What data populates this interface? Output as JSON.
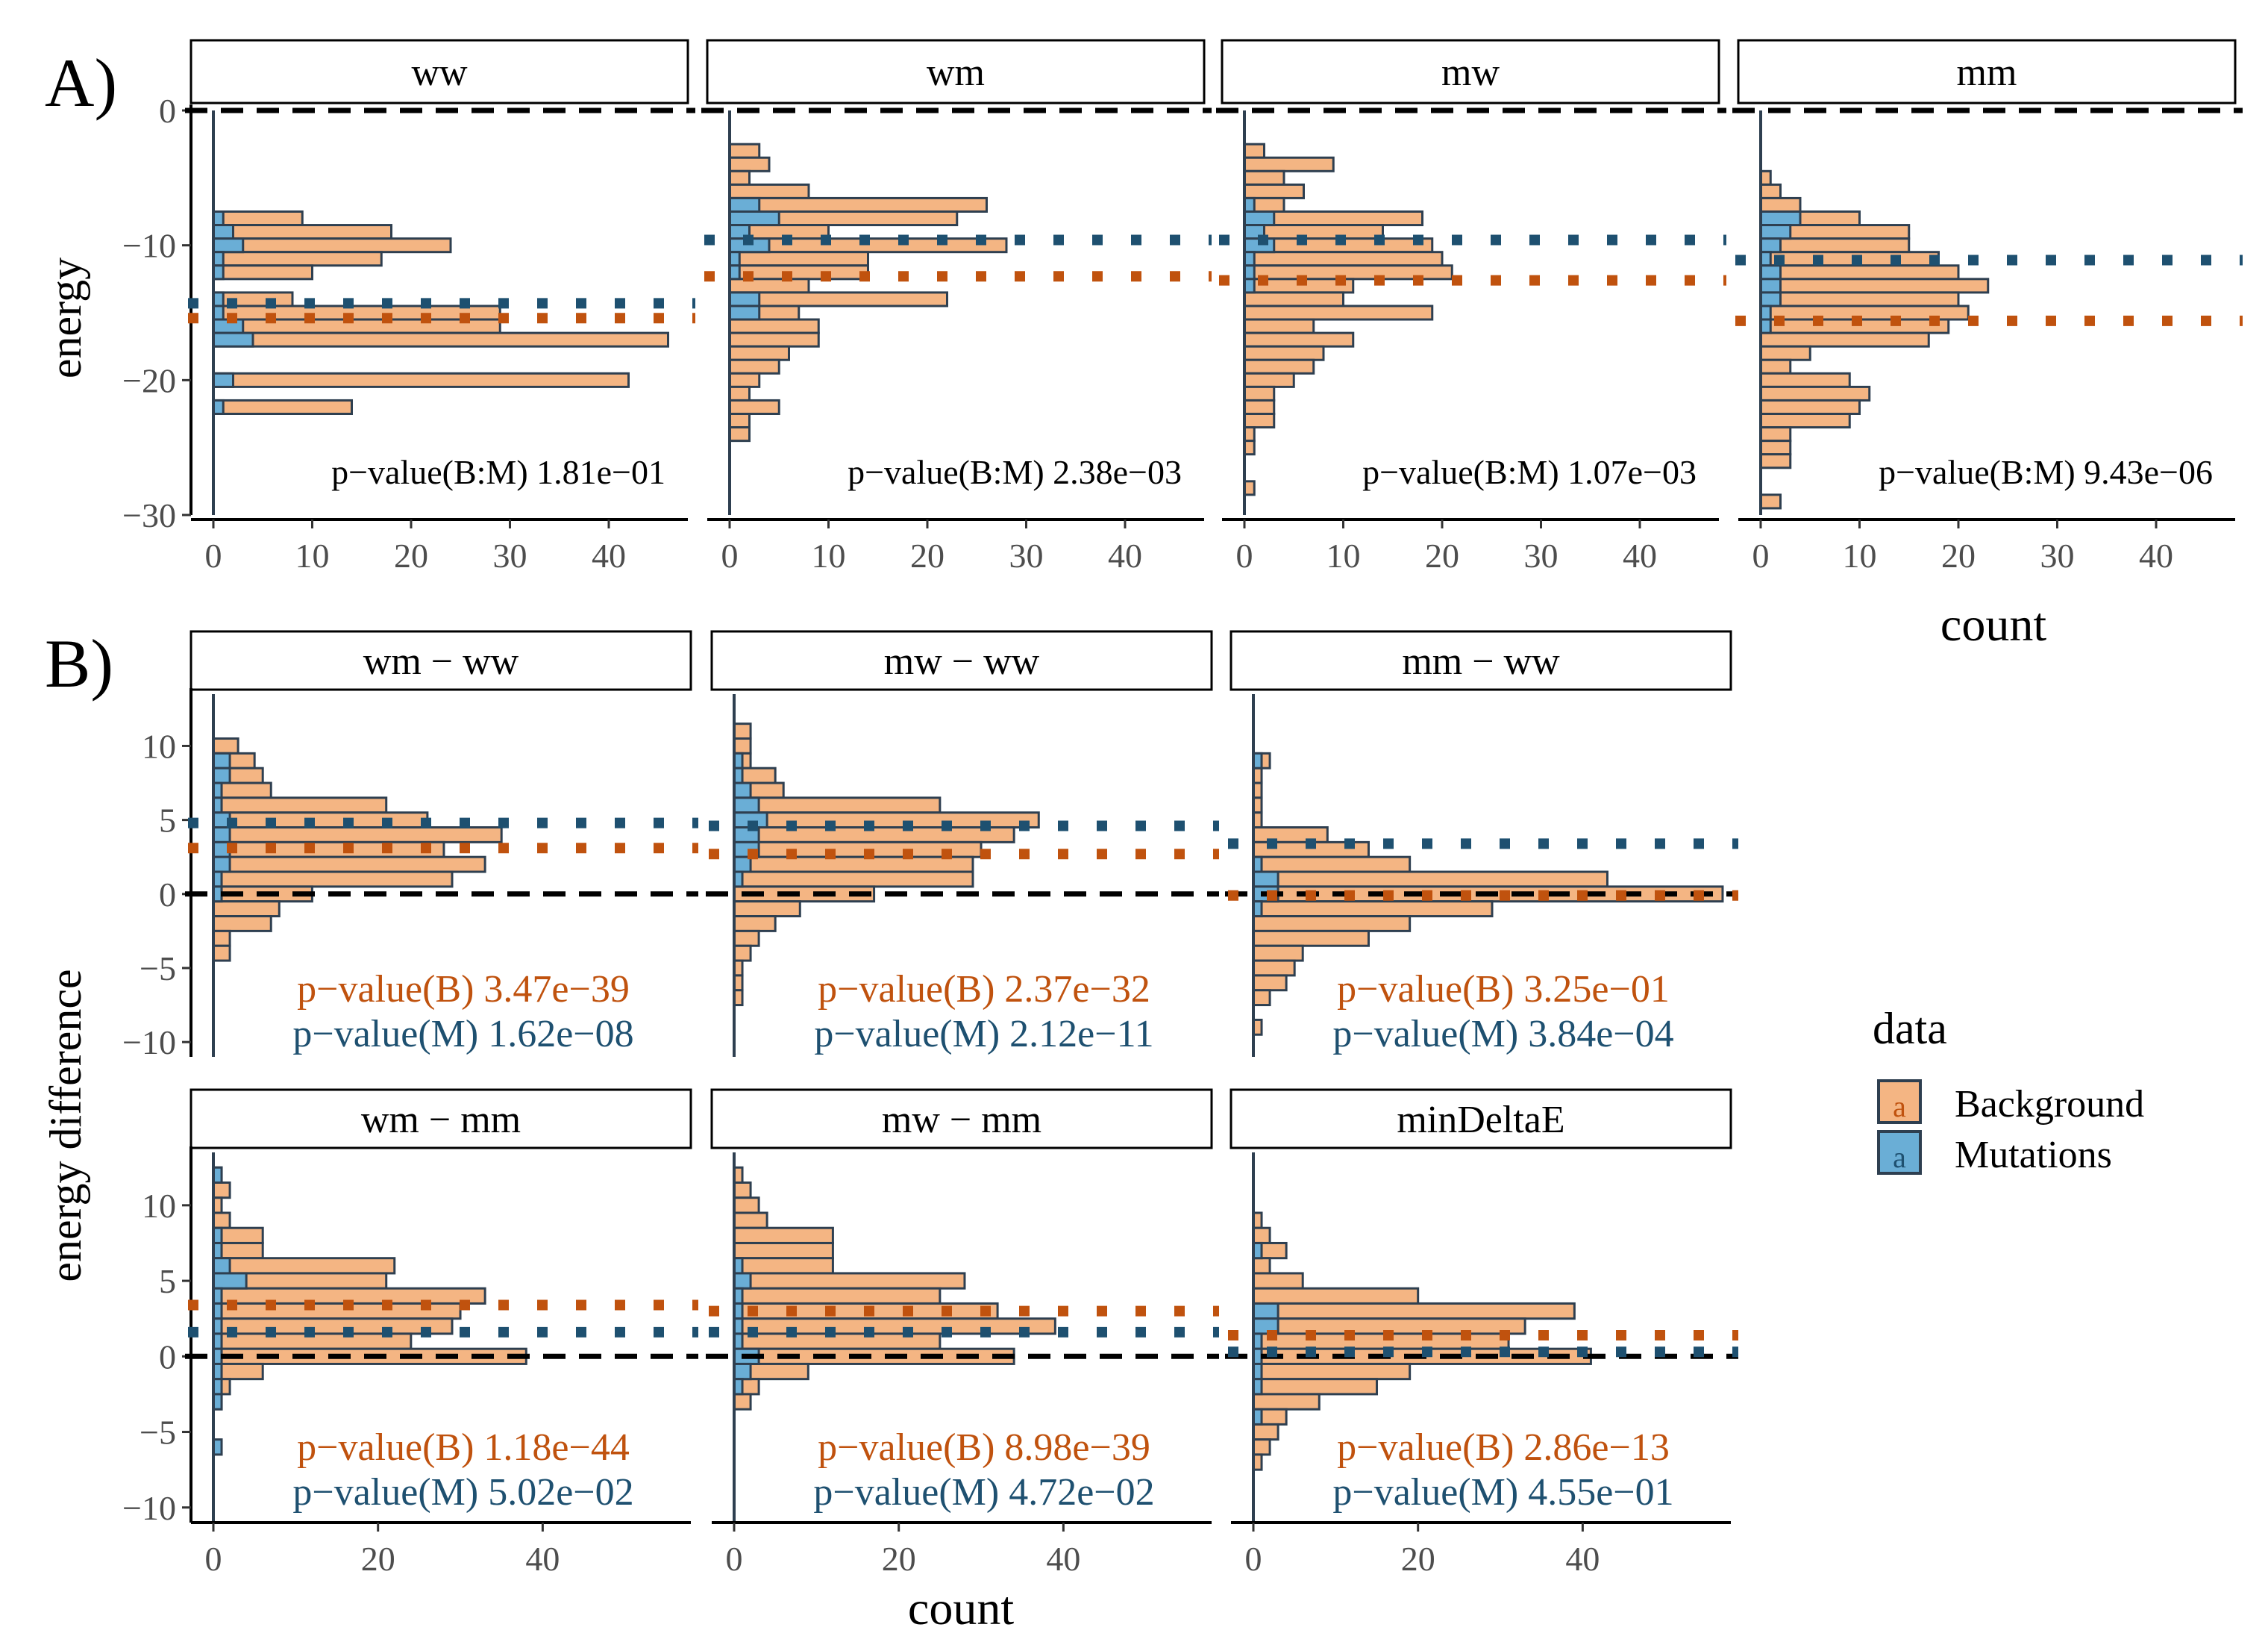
{
  "figure": {
    "panel_labels": {
      "A": "A)",
      "B": "B)"
    },
    "colors": {
      "background_fill": "#F4B583",
      "mutation_fill": "#6AAED6",
      "bar_stroke": "#2E3F50",
      "background_line": "#C0520E",
      "mutation_line": "#1E5070",
      "zero_line": "#000000"
    },
    "legend": {
      "title": "data",
      "items": [
        {
          "label": "Background",
          "glyph": "a"
        },
        {
          "label": "Mutations",
          "glyph": "a"
        }
      ]
    }
  },
  "chart_data": [
    {
      "section": "A",
      "type": "bar",
      "orientation": "horizontal-histogram",
      "ylabel": "energy",
      "xlabel": "count",
      "ylim": [
        -30,
        0
      ],
      "yticks": [
        0,
        -10,
        -20,
        -30
      ],
      "xlim": [
        0,
        48
      ],
      "xticks": [
        0,
        10,
        20,
        30,
        40
      ],
      "bin_width": 1,
      "panels": [
        {
          "name": "ww",
          "title": "ww",
          "annotation": {
            "pvalue_bm": "p−value(B:M) 1.81e−01"
          },
          "hlines": {
            "zero": 0,
            "background_mean": -15.4,
            "mutation_mean": -14.3
          },
          "series": [
            {
              "name": "Background",
              "bins": [
                -8,
                -9,
                -10,
                -11,
                -12,
                -14,
                -15,
                -16,
                -17,
                -20,
                -22
              ],
              "values": [
                9,
                18,
                24,
                17,
                10,
                8,
                29,
                29,
                46,
                42,
                14
              ]
            },
            {
              "name": "Mutations",
              "bins": [
                -8,
                -9,
                -10,
                -11,
                -12,
                -14,
                -15,
                -16,
                -17,
                -20,
                -22
              ],
              "values": [
                1,
                2,
                3,
                1,
                1,
                1,
                1,
                3,
                4,
                2,
                1
              ]
            }
          ]
        },
        {
          "name": "wm",
          "title": "wm",
          "annotation": {
            "pvalue_bm": "p−value(B:M) 2.38e−03"
          },
          "hlines": {
            "zero": 0,
            "background_mean": -12.3,
            "mutation_mean": -9.6
          },
          "series": [
            {
              "name": "Background",
              "bins": [
                -3,
                -4,
                -5,
                -6,
                -7,
                -8,
                -9,
                -10,
                -11,
                -12,
                -13,
                -14,
                -15,
                -16,
                -17,
                -18,
                -19,
                -20,
                -21,
                -22,
                -23,
                -24
              ],
              "values": [
                3,
                4,
                2,
                8,
                26,
                23,
                10,
                28,
                14,
                14,
                8,
                22,
                7,
                9,
                9,
                6,
                5,
                3,
                2,
                5,
                2,
                2
              ]
            },
            {
              "name": "Mutations",
              "bins": [
                -7,
                -8,
                -9,
                -10,
                -11,
                -12,
                -14,
                -15
              ],
              "values": [
                3,
                5,
                2,
                4,
                1,
                1,
                3,
                3
              ]
            }
          ]
        },
        {
          "name": "mw",
          "title": "mw",
          "annotation": {
            "pvalue_bm": "p−value(B:M) 1.07e−03"
          },
          "hlines": {
            "zero": 0,
            "background_mean": -12.6,
            "mutation_mean": -9.6
          },
          "series": [
            {
              "name": "Background",
              "bins": [
                -3,
                -4,
                -5,
                -6,
                -7,
                -8,
                -9,
                -10,
                -11,
                -12,
                -13,
                -14,
                -15,
                -16,
                -17,
                -18,
                -19,
                -20,
                -21,
                -22,
                -23,
                -24,
                -25,
                -28
              ],
              "values": [
                2,
                9,
                4,
                6,
                4,
                18,
                14,
                19,
                20,
                21,
                11,
                10,
                19,
                7,
                11,
                8,
                7,
                5,
                3,
                3,
                3,
                1,
                1,
                1
              ]
            },
            {
              "name": "Mutations",
              "bins": [
                -7,
                -8,
                -9,
                -10,
                -11,
                -12,
                -13
              ],
              "values": [
                1,
                3,
                2,
                3,
                1,
                1,
                1
              ]
            }
          ]
        },
        {
          "name": "mm",
          "title": "mm",
          "annotation": {
            "pvalue_bm": "p−value(B:M) 9.43e−06"
          },
          "hlines": {
            "zero": 0,
            "background_mean": -15.6,
            "mutation_mean": -11.1
          },
          "series": [
            {
              "name": "Background",
              "bins": [
                -5,
                -6,
                -7,
                -8,
                -9,
                -10,
                -11,
                -12,
                -13,
                -14,
                -15,
                -16,
                -17,
                -18,
                -19,
                -20,
                -21,
                -22,
                -23,
                -24,
                -25,
                -26,
                -29
              ],
              "values": [
                1,
                2,
                4,
                10,
                15,
                15,
                18,
                20,
                23,
                20,
                21,
                19,
                17,
                5,
                3,
                9,
                11,
                10,
                9,
                3,
                3,
                3,
                2
              ]
            },
            {
              "name": "Mutations",
              "bins": [
                -8,
                -9,
                -10,
                -11,
                -12,
                -13,
                -14,
                -15,
                -16
              ],
              "values": [
                4,
                3,
                2,
                1,
                2,
                2,
                2,
                1,
                1
              ]
            }
          ]
        }
      ]
    },
    {
      "section": "B",
      "type": "bar",
      "orientation": "horizontal-histogram",
      "ylabel": "energy difference",
      "xlabel": "count",
      "ylim": [
        -11,
        13.5
      ],
      "yticks": [
        10,
        5,
        0,
        -5,
        -10
      ],
      "xlim": [
        0,
        58
      ],
      "xticks": [
        0,
        20,
        40
      ],
      "bin_width": 1,
      "panels": [
        {
          "name": "wm-ww",
          "title": "wm − ww",
          "annotation": {
            "pvalue_b": "p−value(B) 3.47e−39",
            "pvalue_m": "p−value(M) 1.62e−08"
          },
          "hlines": {
            "zero": 0,
            "background_mean": 3.1,
            "mutation_mean": 4.8
          },
          "series": [
            {
              "name": "Background",
              "bins": [
                10,
                9,
                8,
                7,
                6,
                5,
                4,
                3,
                2,
                1,
                0,
                -1,
                -2,
                -3,
                -4
              ],
              "values": [
                3,
                5,
                6,
                7,
                21,
                26,
                35,
                28,
                33,
                29,
                12,
                8,
                7,
                2,
                2
              ]
            },
            {
              "name": "Mutations",
              "bins": [
                9,
                8,
                7,
                6,
                5,
                4,
                3,
                2,
                1,
                0
              ],
              "values": [
                2,
                2,
                1,
                1,
                2,
                2,
                2,
                2,
                1,
                1
              ]
            }
          ]
        },
        {
          "name": "mw-ww",
          "title": "mw − ww",
          "annotation": {
            "pvalue_b": "p−value(B) 2.37e−32",
            "pvalue_m": "p−value(M) 2.12e−11"
          },
          "hlines": {
            "zero": 0,
            "background_mean": 2.7,
            "mutation_mean": 4.6
          },
          "series": [
            {
              "name": "Background",
              "bins": [
                11,
                10,
                9,
                8,
                7,
                6,
                5,
                4,
                3,
                2,
                1,
                0,
                -1,
                -2,
                -3,
                -4,
                -5,
                -6,
                -7
              ],
              "values": [
                2,
                2,
                2,
                5,
                6,
                25,
                37,
                34,
                30,
                29,
                29,
                17,
                8,
                5,
                3,
                2,
                1,
                1,
                1
              ]
            },
            {
              "name": "Mutations",
              "bins": [
                9,
                8,
                7,
                6,
                5,
                4,
                3,
                2,
                1
              ],
              "values": [
                1,
                1,
                2,
                3,
                4,
                3,
                3,
                2,
                1
              ]
            }
          ]
        },
        {
          "name": "mm-ww",
          "title": "mm − ww",
          "annotation": {
            "pvalue_b": "p−value(B) 3.25e−01",
            "pvalue_m": "p−value(M) 3.84e−04"
          },
          "hlines": {
            "zero": 0,
            "background_mean": -0.1,
            "mutation_mean": 3.4
          },
          "series": [
            {
              "name": "Background",
              "bins": [
                9,
                8,
                7,
                6,
                5,
                4,
                3,
                2,
                1,
                0,
                -1,
                -2,
                -3,
                -4,
                -5,
                -6,
                -7,
                -9
              ],
              "values": [
                2,
                1,
                1,
                1,
                1,
                9,
                14,
                19,
                43,
                57,
                29,
                19,
                14,
                6,
                5,
                4,
                2,
                1
              ]
            },
            {
              "name": "Mutations",
              "bins": [
                9,
                2,
                1,
                0,
                -1
              ],
              "values": [
                1,
                1,
                3,
                3,
                1
              ]
            }
          ]
        },
        {
          "name": "wm-mm",
          "title": "wm − mm",
          "annotation": {
            "pvalue_b": "p−value(B) 1.18e−44",
            "pvalue_m": "p−value(M) 5.02e−02"
          },
          "hlines": {
            "zero": 0,
            "background_mean": 3.4,
            "mutation_mean": 1.6
          },
          "series": [
            {
              "name": "Background",
              "bins": [
                12,
                11,
                10,
                9,
                8,
                7,
                6,
                5,
                4,
                3,
                2,
                1,
                0,
                -1,
                -2,
                -3
              ],
              "values": [
                1,
                2,
                1,
                2,
                6,
                6,
                22,
                21,
                33,
                30,
                29,
                24,
                38,
                6,
                2,
                1
              ]
            },
            {
              "name": "Mutations",
              "bins": [
                12,
                8,
                7,
                6,
                5,
                4,
                3,
                2,
                1,
                0,
                -1,
                -2,
                -3,
                -6
              ],
              "values": [
                1,
                1,
                1,
                2,
                4,
                1,
                1,
                1,
                1,
                1,
                1,
                1,
                1,
                1
              ]
            }
          ]
        },
        {
          "name": "mw-mm",
          "title": "mw − mm",
          "annotation": {
            "pvalue_b": "p−value(B) 8.98e−39",
            "pvalue_m": "p−value(M) 4.72e−02"
          },
          "hlines": {
            "zero": 0,
            "background_mean": 3.0,
            "mutation_mean": 1.6
          },
          "series": [
            {
              "name": "Background",
              "bins": [
                12,
                11,
                10,
                9,
                8,
                7,
                6,
                5,
                4,
                3,
                2,
                1,
                0,
                -1,
                -2,
                -3
              ],
              "values": [
                1,
                2,
                3,
                4,
                12,
                12,
                12,
                28,
                25,
                32,
                39,
                25,
                34,
                9,
                3,
                2
              ]
            },
            {
              "name": "Mutations",
              "bins": [
                6,
                5,
                4,
                3,
                2,
                1,
                0,
                -1,
                -2
              ],
              "values": [
                1,
                2,
                1,
                1,
                1,
                1,
                3,
                2,
                1
              ]
            }
          ]
        },
        {
          "name": "minDeltaE",
          "title": "minDeltaE",
          "annotation": {
            "pvalue_b": "p−value(B) 2.86e−13",
            "pvalue_m": "p−value(M) 4.55e−01"
          },
          "hlines": {
            "zero": 0,
            "background_mean": 1.4,
            "mutation_mean": 0.3
          },
          "series": [
            {
              "name": "Background",
              "bins": [
                9,
                8,
                7,
                6,
                5,
                4,
                3,
                2,
                1,
                0,
                -1,
                -2,
                -3,
                -4,
                -5,
                -6,
                -7
              ],
              "values": [
                1,
                2,
                4,
                2,
                6,
                20,
                39,
                33,
                31,
                41,
                19,
                15,
                8,
                4,
                3,
                2,
                1
              ]
            },
            {
              "name": "Mutations",
              "bins": [
                7,
                3,
                2,
                1,
                0,
                -1,
                -2,
                -4
              ],
              "values": [
                1,
                3,
                3,
                1,
                1,
                1,
                1,
                1
              ]
            }
          ]
        }
      ]
    }
  ]
}
